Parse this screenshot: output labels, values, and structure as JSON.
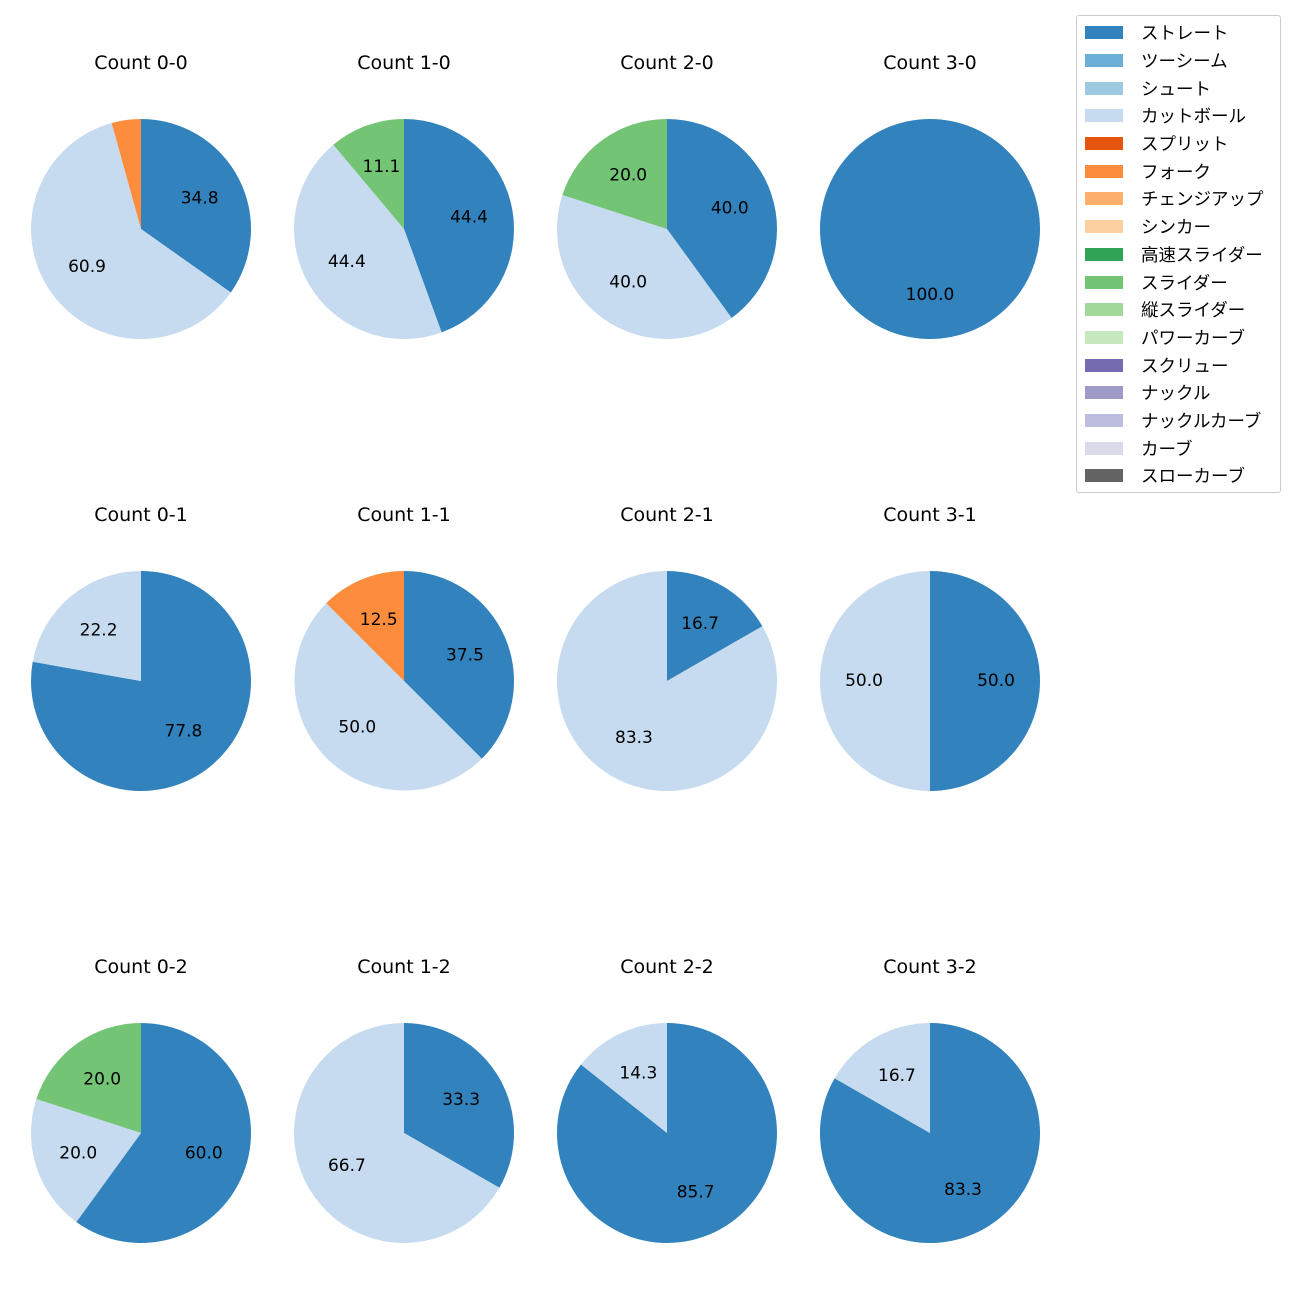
{
  "chart_data": {
    "type": "pie",
    "legend": {
      "position": "top-right",
      "entries": [
        {
          "name": "ストレート",
          "color": "#3182bd"
        },
        {
          "name": "ツーシーム",
          "color": "#6baed6"
        },
        {
          "name": "シュート",
          "color": "#9ecae1"
        },
        {
          "name": "カットボール",
          "color": "#c6dbef"
        },
        {
          "name": "スプリット",
          "color": "#e6550d"
        },
        {
          "name": "フォーク",
          "color": "#fd8d3c"
        },
        {
          "name": "チェンジアップ",
          "color": "#fdae6b"
        },
        {
          "name": "シンカー",
          "color": "#fdd0a2"
        },
        {
          "name": "高速スライダー",
          "color": "#31a354"
        },
        {
          "name": "スライダー",
          "color": "#74c476"
        },
        {
          "name": "縦スライダー",
          "color": "#a1d99b"
        },
        {
          "name": "パワーカーブ",
          "color": "#c7e9c0"
        },
        {
          "name": "スクリュー",
          "color": "#756bb1"
        },
        {
          "name": "ナックル",
          "color": "#9e9ac8"
        },
        {
          "name": "ナックルカーブ",
          "color": "#bcbddc"
        },
        {
          "name": "カーブ",
          "color": "#dadaeb"
        },
        {
          "name": "スローカーブ",
          "color": "#636363"
        }
      ]
    },
    "pies": [
      {
        "title": "Count 0-0",
        "slices": [
          {
            "pitch": "ストレート",
            "value": 34.8,
            "label": "34.8"
          },
          {
            "pitch": "カットボール",
            "value": 60.9,
            "label": "60.9"
          },
          {
            "pitch": "フォーク",
            "value": 4.3,
            "label": ""
          }
        ]
      },
      {
        "title": "Count 1-0",
        "slices": [
          {
            "pitch": "ストレート",
            "value": 44.4,
            "label": "44.4"
          },
          {
            "pitch": "カットボール",
            "value": 44.4,
            "label": "44.4"
          },
          {
            "pitch": "スライダー",
            "value": 11.1,
            "label": "11.1"
          }
        ]
      },
      {
        "title": "Count 2-0",
        "slices": [
          {
            "pitch": "ストレート",
            "value": 40.0,
            "label": "40.0"
          },
          {
            "pitch": "カットボール",
            "value": 40.0,
            "label": "40.0"
          },
          {
            "pitch": "スライダー",
            "value": 20.0,
            "label": "20.0"
          }
        ]
      },
      {
        "title": "Count 3-0",
        "slices": [
          {
            "pitch": "ストレート",
            "value": 100.0,
            "label": "100.0"
          }
        ]
      },
      {
        "title": "Count 0-1",
        "slices": [
          {
            "pitch": "ストレート",
            "value": 77.8,
            "label": "77.8"
          },
          {
            "pitch": "カットボール",
            "value": 22.2,
            "label": "22.2"
          }
        ]
      },
      {
        "title": "Count 1-1",
        "slices": [
          {
            "pitch": "ストレート",
            "value": 37.5,
            "label": "37.5"
          },
          {
            "pitch": "カットボール",
            "value": 50.0,
            "label": "50.0"
          },
          {
            "pitch": "フォーク",
            "value": 12.5,
            "label": "12.5"
          }
        ]
      },
      {
        "title": "Count 2-1",
        "slices": [
          {
            "pitch": "ストレート",
            "value": 16.7,
            "label": "16.7"
          },
          {
            "pitch": "カットボール",
            "value": 83.3,
            "label": "83.3"
          }
        ]
      },
      {
        "title": "Count 3-1",
        "slices": [
          {
            "pitch": "ストレート",
            "value": 50.0,
            "label": "50.0"
          },
          {
            "pitch": "カットボール",
            "value": 50.0,
            "label": "50.0"
          }
        ]
      },
      {
        "title": "Count 0-2",
        "slices": [
          {
            "pitch": "ストレート",
            "value": 60.0,
            "label": "60.0"
          },
          {
            "pitch": "カットボール",
            "value": 20.0,
            "label": "20.0"
          },
          {
            "pitch": "スライダー",
            "value": 20.0,
            "label": "20.0"
          }
        ]
      },
      {
        "title": "Count 1-2",
        "slices": [
          {
            "pitch": "ストレート",
            "value": 33.3,
            "label": "33.3"
          },
          {
            "pitch": "カットボール",
            "value": 66.7,
            "label": "66.7"
          }
        ]
      },
      {
        "title": "Count 2-2",
        "slices": [
          {
            "pitch": "ストレート",
            "value": 85.7,
            "label": "85.7"
          },
          {
            "pitch": "カットボール",
            "value": 14.3,
            "label": "14.3"
          }
        ]
      },
      {
        "title": "Count 3-2",
        "slices": [
          {
            "pitch": "ストレート",
            "value": 83.3,
            "label": "83.3"
          },
          {
            "pitch": "カットボール",
            "value": 16.7,
            "label": "16.7"
          }
        ]
      }
    ]
  }
}
